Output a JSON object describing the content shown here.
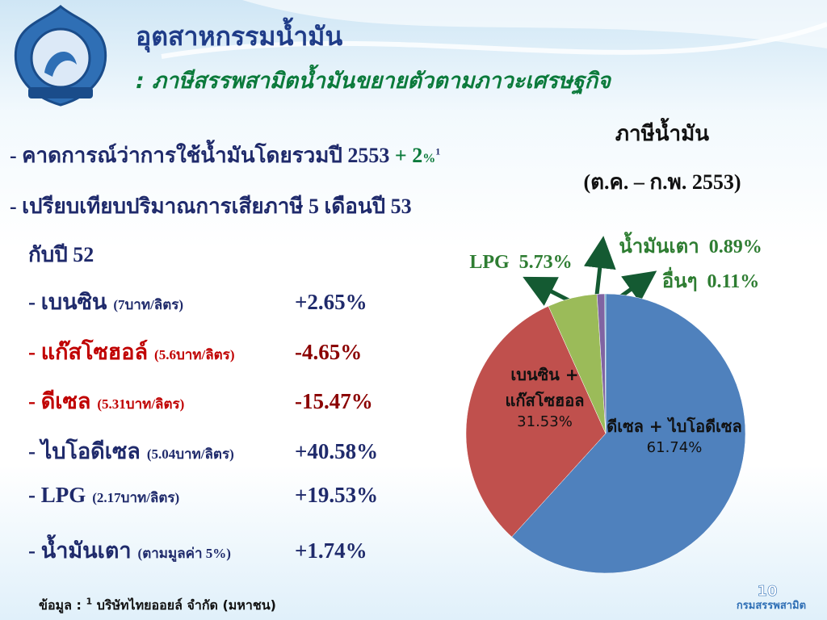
{
  "header": {
    "title": "อุตสาหกรรมน้ำมัน",
    "subtitle": ": ภาษีสรรพสามิตน้ำมันขยายตัวตามภาวะเศรษฐกิจ"
  },
  "bullets": [
    {
      "text": "- คาดการณ์ว่าการใช้น้ำมันโดยรวมปี 2553",
      "highlight": "+ 2",
      "unit": "%",
      "note": "1"
    },
    {
      "text": "- เปรียบเทียบปริมาณการเสียภาษี 5 เดือนปี 53",
      "continuation": "กับปี 52"
    }
  ],
  "items": [
    {
      "name": "- เบนซิน",
      "detail": "(7บาท/ลิตร)",
      "change": "+2.65%",
      "color": "#1f2a6b"
    },
    {
      "name": "- แก๊สโซฮอล์",
      "detail": "(5.6บาท/ลิตร)",
      "change": "-4.65%",
      "color": "#c00000"
    },
    {
      "name": "- ดีเซล",
      "detail": "(5.31บาท/ลิตร)",
      "change": "-15.47%",
      "color": "#c00000"
    },
    {
      "name": "- ไบโอดีเซล",
      "detail": "(5.04บาท/ลิตร)",
      "change": "+40.58%",
      "color": "#1f2a6b"
    },
    {
      "name": "- LPG",
      "detail": "(2.17บาท/ลิตร)",
      "change": "+19.53%",
      "color": "#1f2a6b"
    },
    {
      "name": "- น้ำมันเตา",
      "detail": "(ตามมูลค่า 5%)",
      "change": "+1.74%",
      "color": "#1f2a6b"
    }
  ],
  "footer": {
    "source_label": "ข้อมูล :",
    "source_note": "1",
    "source": "บริษัทไทยออยล์ จำกัด (มหาชน)",
    "page": "10",
    "organization": "กรมสรรพสามิต"
  },
  "chart_data": {
    "type": "pie",
    "title": "ภาษีน้ำมัน",
    "subtitle": "(ต.ค. – ก.พ. 2553)",
    "categories": [
      "ดีเซล + ไบโอดีเซล",
      "เบนซิน + แก๊สโซฮอล",
      "LPG",
      "น้ำมันเตา",
      "อื่นๆ"
    ],
    "values": [
      61.74,
      31.53,
      5.73,
      0.89,
      0.11
    ],
    "value_labels": [
      "61.74%",
      "31.53%",
      "5.73%",
      "0.89%",
      "0.11%"
    ],
    "colors": [
      "#4f81bd",
      "#c0504d",
      "#9bbb59",
      "#8064a2",
      "#4bacc6"
    ]
  }
}
